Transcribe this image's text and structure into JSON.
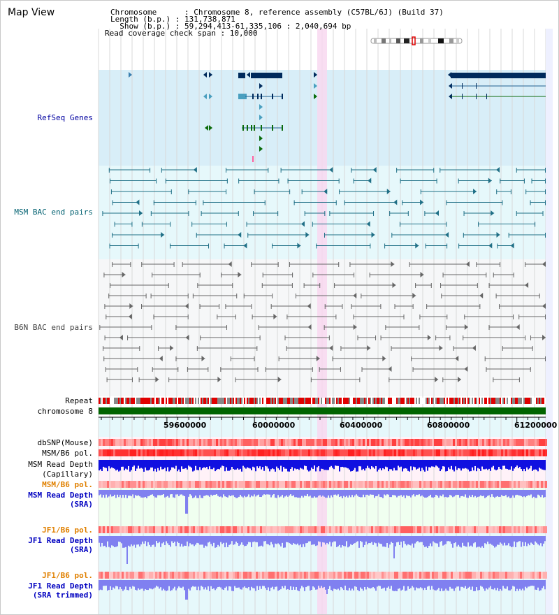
{
  "header": {
    "title": "Map View",
    "info_lines": [
      "Chromosome      : Chromosome 8, reference assembly (C57BL/6J) (Build 37)",
      "Length (b.p.) : 131,738,871",
      "  Show (b.p.) : 59,294,413-61,335,106 : 2,040,694 bp",
      "Read coverage check span : 10,000"
    ]
  },
  "tracks": {
    "refseq": {
      "label": "RefSeq Genes",
      "color": "#0000a0"
    },
    "msm_bac": {
      "label": "MSM BAC end pairs",
      "color": "#006070"
    },
    "b6n_bac": {
      "label": "B6N BAC end pairs",
      "color": "#404040"
    },
    "repeat": {
      "label": "Repeat"
    },
    "chromosome": {
      "label": "chromosome 8"
    },
    "dbsnp": {
      "label": "dbSNP(Mouse)"
    },
    "msm_b6_pol_1": {
      "label": "MSM/B6 pol."
    },
    "msm_depth_cap": {
      "label": "MSM Read Depth\n(Capillary)"
    },
    "msm_b6_pol_2": {
      "label": "MSM/B6 pol.",
      "color": "#e08000"
    },
    "msm_depth_sra": {
      "label": "MSM Read Depth\n(SRA)",
      "color": "#0000c0"
    },
    "jf1_b6_pol_1": {
      "label": "JF1/B6 pol.",
      "color": "#e08000"
    },
    "jf1_depth_sra": {
      "label": "JF1 Read Depth\n(SRA)",
      "color": "#0000c0"
    },
    "jf1_b6_pol_2": {
      "label": "JF1/B6 pol.",
      "color": "#e08000"
    },
    "jf1_depth_trim": {
      "label": "JF1 Read Depth\n(SRA trimmed)",
      "color": "#0000c0"
    }
  },
  "ruler": {
    "labels": [
      "59600000",
      "60000000",
      "60400000",
      "60800000",
      "61200000"
    ]
  },
  "colors": {
    "refseq_bg": "#d8eef8",
    "msm_bg": "#e6f8fb",
    "b6n_bg": "#f4f6f8",
    "gene_dark": "#002a5c",
    "gene_light": "#4a9fbf",
    "gene_green": "#0b6b0b",
    "highlight": "#f8d8f0",
    "chromosome_bar": "#006400",
    "depth_dark": "#1010e0",
    "depth_light": "#8080f0"
  }
}
